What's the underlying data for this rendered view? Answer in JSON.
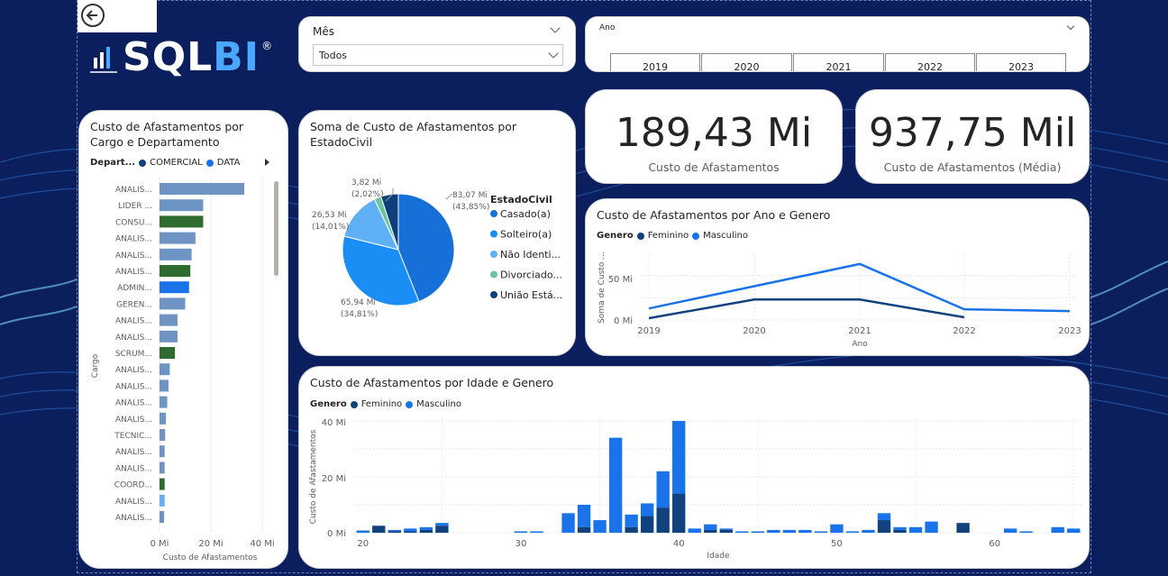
{
  "logo": {
    "text_a": "SQL",
    "text_b": "BI",
    "mark": "®"
  },
  "slicer_mes": {
    "title": "Mês",
    "value": "Todos"
  },
  "slicer_ano": {
    "title": "Ano",
    "years": [
      "2019",
      "2020",
      "2021",
      "2022",
      "2023"
    ]
  },
  "kpi_total": {
    "value": "189,43 Mi",
    "label": "Custo de Afastamentos"
  },
  "kpi_media": {
    "value": "937,75 Mil",
    "label": "Custo de Afastamentos (Média)"
  },
  "colors": {
    "dark_blue": "#12427e",
    "mid_blue": "#1a73e8",
    "light_blue": "#63b0f5",
    "green": "#2e6b2e",
    "gray_blue": "#6e94c4",
    "teal": "#6cc4a1",
    "navy": "#0b3f7a",
    "bg": "#0b1f5e"
  },
  "cargo_chart": {
    "title_line1": "Custo de Afastamentos por",
    "title_line2": "Cargo e Departamento",
    "legend_title": "Depart...",
    "legend_items": [
      "COMERCIAL",
      "DATA"
    ],
    "y_title": "Cargo",
    "x_title": "Custo de Afastamentos",
    "x_ticks": [
      "0 Mi",
      "20 Mi",
      "40 Mi"
    ],
    "chart_data": {
      "type": "bar",
      "categories": [
        "ANALIS...",
        "LIDER ...",
        "CONSU...",
        "ANALIS...",
        "ANALIS...",
        "ANALIS...",
        "ADMIN...",
        "GEREN...",
        "ANALIS...",
        "ANALIS...",
        "SCRUM...",
        "ANALIS...",
        "ANALIS...",
        "ANALIS...",
        "ANALIS...",
        "TECNIC...",
        "ANALIS...",
        "ANALIS...",
        "COORD...",
        "ANALIS...",
        "ANALIS..."
      ],
      "values": [
        33,
        17,
        17,
        14,
        12.5,
        12,
        11.5,
        10,
        7,
        7,
        6,
        4,
        3.5,
        3,
        2.5,
        2.2,
        2,
        2,
        2,
        2,
        1.8
      ],
      "kinds": [
        "gray",
        "gray",
        "green",
        "gray",
        "gray",
        "green",
        "blue",
        "gray",
        "gray",
        "gray",
        "green",
        "gray",
        "gray",
        "gray",
        "gray",
        "gray",
        "gray",
        "gray",
        "green",
        "light",
        "gray"
      ],
      "xlim": [
        0,
        45
      ]
    }
  },
  "pie_chart": {
    "title_line1": "Soma de Custo de Afastamentos por",
    "title_line2": "EstadoCivil",
    "legend_title": "EstadoCivil",
    "chart_data": {
      "type": "pie",
      "slices": [
        {
          "name": "Casado(a)",
          "legend_label": "Casado(a)",
          "value": 83.07,
          "value_label": "83,07 Mi",
          "pct_label": "(43,85%)"
        },
        {
          "name": "Solteiro(a)",
          "legend_label": "Solteiro(a)",
          "value": 65.94,
          "value_label": "65,94 Mi",
          "pct_label": "(34,81%)"
        },
        {
          "name": "Não Identificado",
          "legend_label": "Não Identi...",
          "value": 26.53,
          "value_label": "26,53 Mi",
          "pct_label": "(14,01%)"
        },
        {
          "name": "Divorciado",
          "legend_label": "Divorciado...",
          "value": 3.82,
          "value_label": "3,82 Mi",
          "pct_label": "(2,02%)"
        },
        {
          "name": "União Estável",
          "legend_label": "União Está...",
          "value": 9.5,
          "value_label": "",
          "pct_label": ""
        }
      ]
    }
  },
  "ano_chart": {
    "title": "Custo de Afastamentos por Ano e Genero",
    "legend_title": "Genero",
    "legend_items": [
      "Feminino",
      "Masculino"
    ],
    "y_title": "Soma de Custo ...",
    "x_title": "Ano",
    "y_ticks": [
      "50 Mi",
      "0 Mi"
    ],
    "chart_data": {
      "type": "line",
      "x": [
        "2019",
        "2020",
        "2021",
        "2022",
        "2023"
      ],
      "series": [
        {
          "name": "Feminino",
          "values": [
            2,
            23,
            23,
            3,
            null
          ]
        },
        {
          "name": "Masculino",
          "values": [
            13,
            38,
            63,
            12,
            10
          ]
        }
      ],
      "ylim": [
        0,
        75
      ]
    }
  },
  "idade_chart": {
    "title": "Custo de Afastamentos por Idade e Genero",
    "legend_title": "Genero",
    "legend_items": [
      "Feminino",
      "Masculino"
    ],
    "y_title": "Custo de Afastamentos",
    "x_title": "Idade",
    "y_ticks": [
      "40 Mi",
      "20 Mi",
      "0 Mi"
    ],
    "x_ticks": [
      "20",
      "30",
      "40",
      "50",
      "60"
    ],
    "chart_data": {
      "type": "bar",
      "x": [
        20,
        21,
        22,
        23,
        24,
        25,
        26,
        27,
        28,
        29,
        30,
        31,
        32,
        33,
        34,
        35,
        36,
        37,
        38,
        39,
        40,
        41,
        42,
        43,
        44,
        45,
        46,
        47,
        48,
        49,
        50,
        51,
        52,
        53,
        54,
        55,
        56,
        57,
        58,
        59,
        60,
        61,
        62,
        63,
        64,
        65
      ],
      "series": [
        {
          "name": "Feminino",
          "values": [
            0,
            2.5,
            0.5,
            0.5,
            1,
            2.5,
            0,
            0,
            0,
            0,
            0,
            0,
            0,
            0,
            2,
            0,
            0,
            2,
            6,
            9,
            14,
            0,
            1,
            1,
            0,
            0,
            0,
            0,
            0,
            0,
            0,
            0,
            0,
            4.5,
            1,
            0,
            0,
            0,
            3.5,
            0,
            0,
            0,
            0,
            0,
            0,
            0
          ]
        },
        {
          "name": "Masculino",
          "values": [
            0.8,
            0,
            0.5,
            1,
            1,
            1,
            0,
            0,
            0,
            0,
            0.5,
            0.5,
            0,
            7,
            8,
            4.5,
            34,
            4.5,
            4.5,
            13,
            26,
            1.5,
            2,
            0.5,
            0.5,
            0.5,
            1,
            1,
            1,
            0.5,
            3,
            0.5,
            1,
            2.5,
            1,
            2,
            4,
            0,
            0,
            0,
            0,
            1.5,
            0.5,
            0,
            2,
            1.5
          ]
        }
      ],
      "xlim": [
        19.5,
        65.5
      ],
      "ylim": [
        0,
        40
      ]
    }
  }
}
